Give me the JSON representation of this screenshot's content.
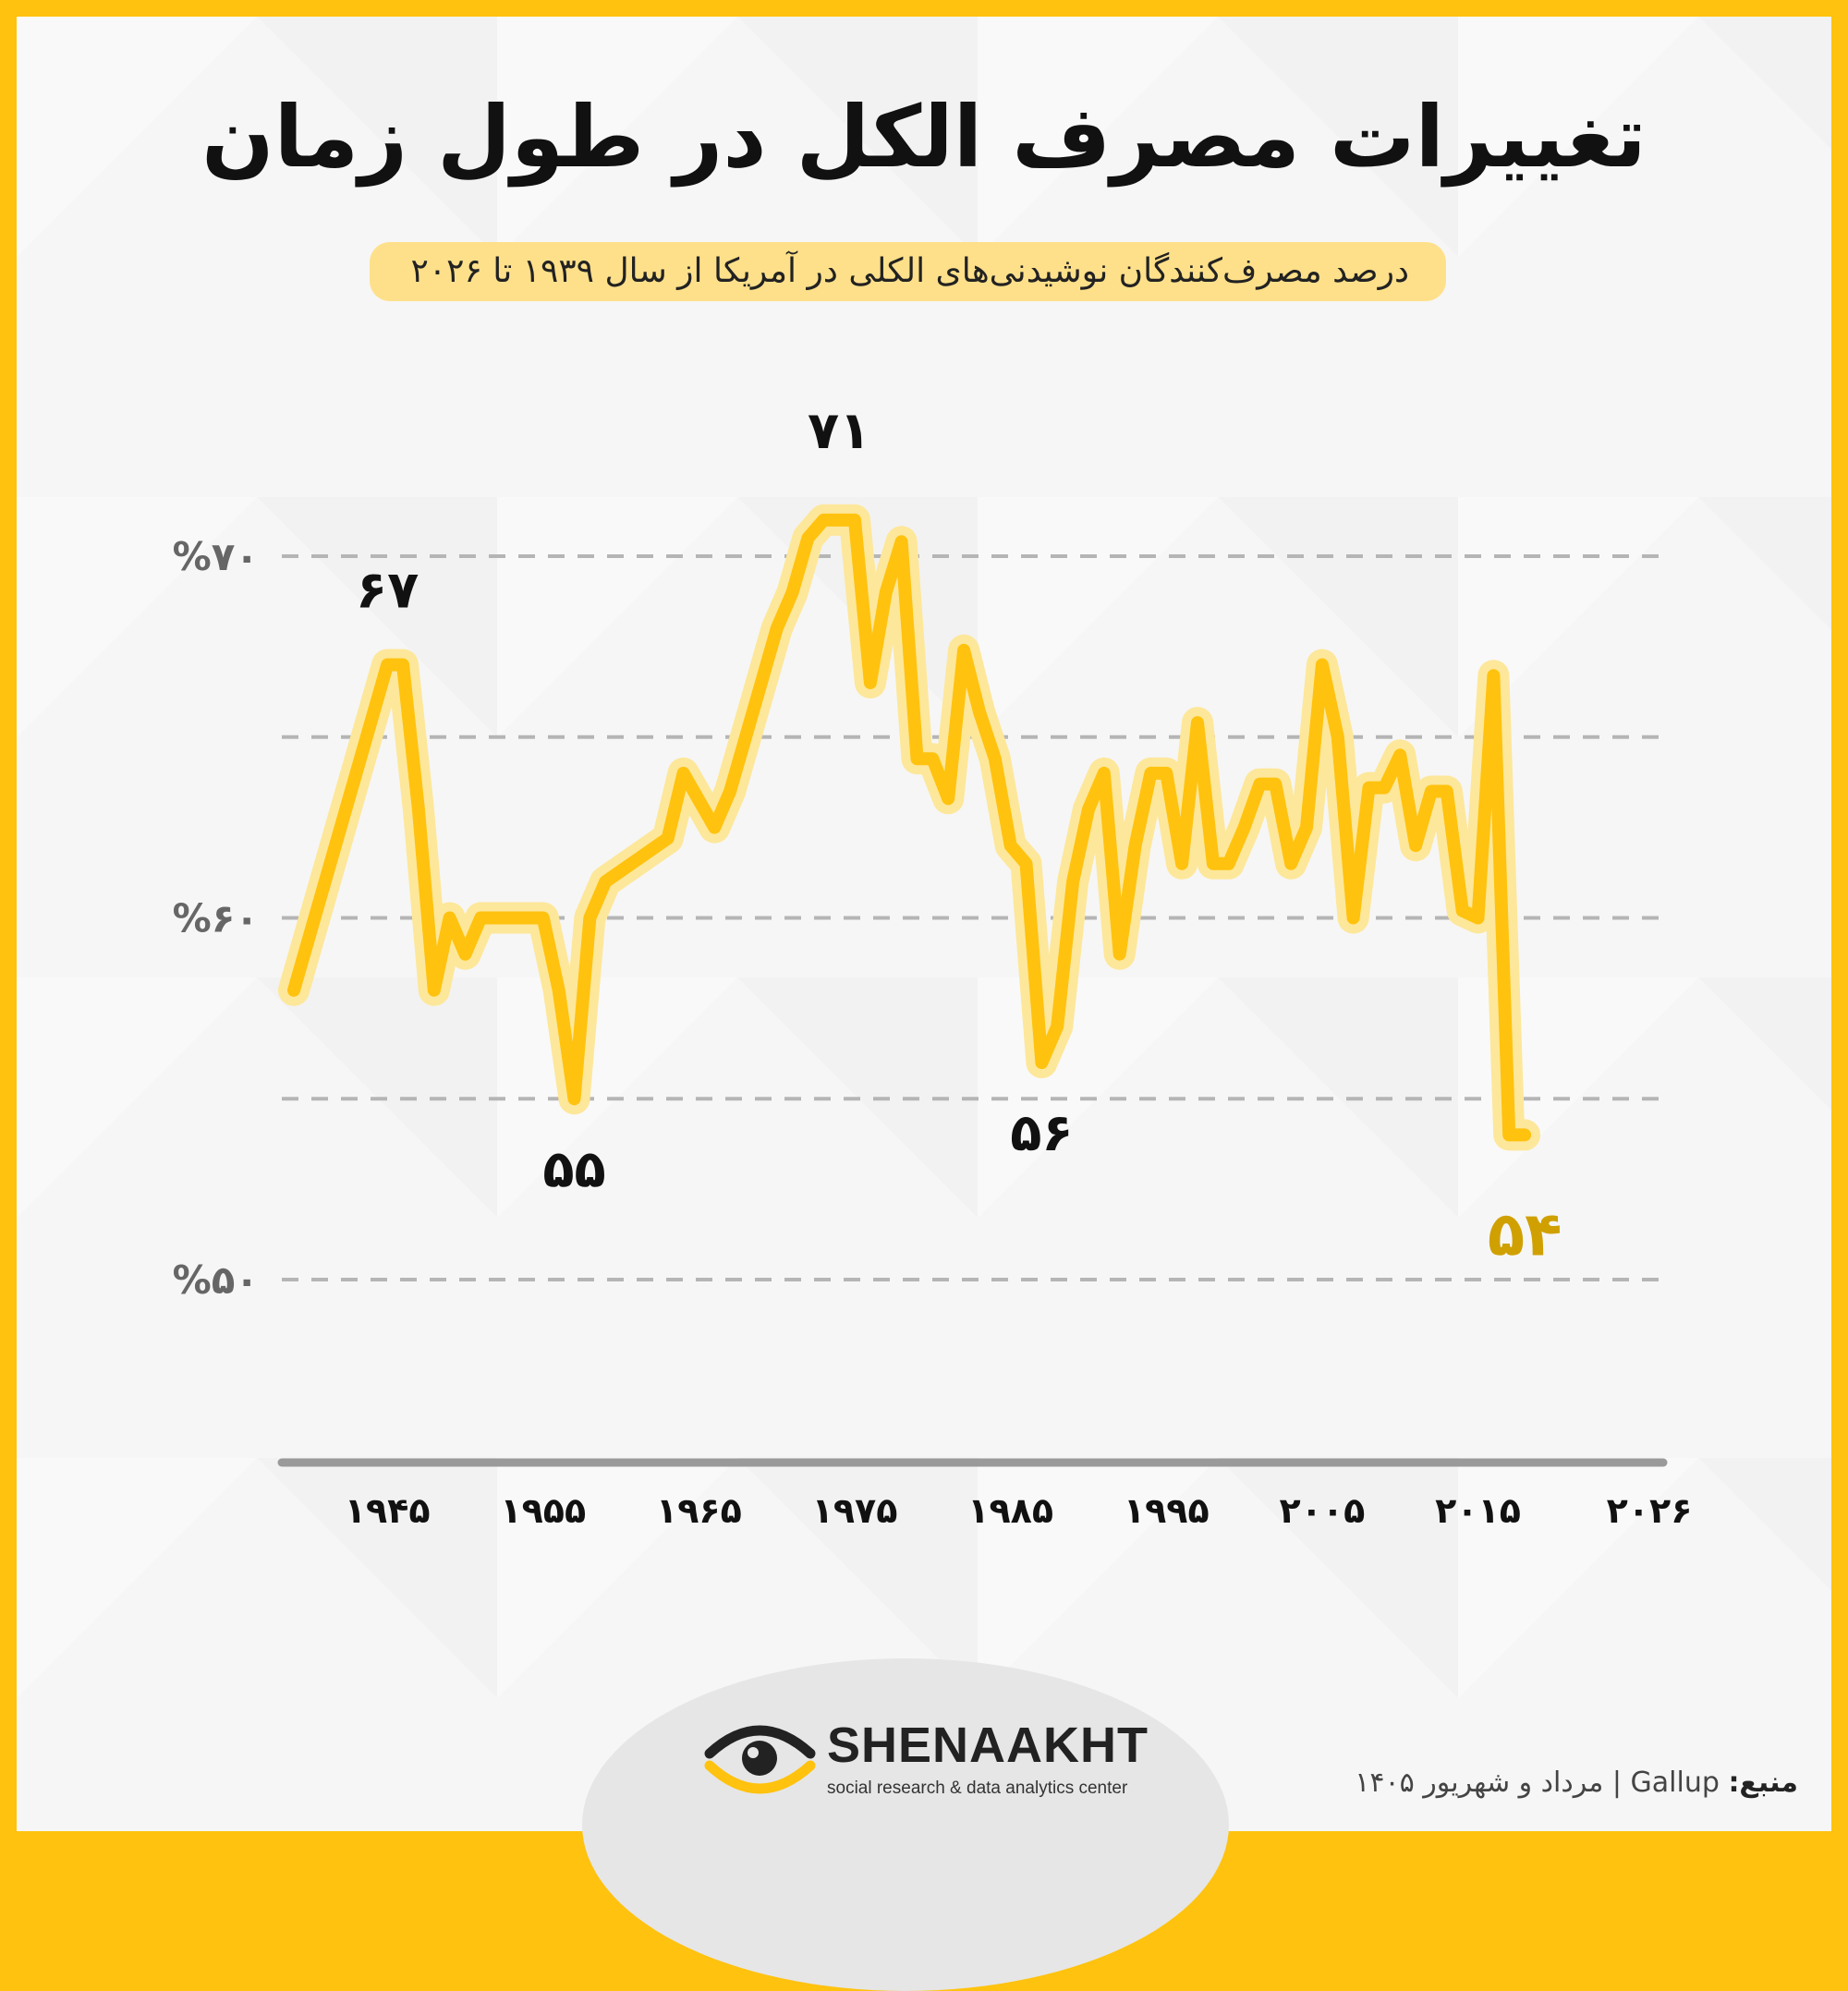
{
  "title": "تغییرات مصرف الکل در طول زمان",
  "subtitle": "درصد مصرف‌کنندگان نوشیدنی‌های الکلی در آمریکا از سال ۱۹۳۹ تا ۲۰۲۶",
  "source": {
    "label": "منبع:",
    "name": "Gallup",
    "separator": "|",
    "date": "مرداد و شهریور ۱۴۰۵"
  },
  "brand": {
    "name": "SHENAAKHT",
    "tagline": "social research & data analytics center"
  },
  "colors": {
    "frame": "#ffc20e",
    "line": "#ffc20e",
    "halo": "#fde79a",
    "final_label": "#d0a000",
    "grid": "#b5b5b5"
  },
  "chart_data": {
    "type": "line",
    "title": "تغییرات مصرف الکل در طول زمان",
    "xlabel": "",
    "ylabel": "",
    "xlim": [
      1939,
      2026
    ],
    "ylim": [
      50,
      72
    ],
    "grid": true,
    "y_ticks": [
      {
        "value": 50,
        "label": "%۵۰"
      },
      {
        "value": 60,
        "label": "%۶۰"
      },
      {
        "value": 70,
        "label": "%۷۰"
      }
    ],
    "y_grid_values": [
      55,
      60,
      65,
      70
    ],
    "x_ticks": [
      {
        "value": 1945,
        "label": "۱۹۴۵"
      },
      {
        "value": 1955,
        "label": "۱۹۵۵"
      },
      {
        "value": 1965,
        "label": "۱۹۶۵"
      },
      {
        "value": 1975,
        "label": "۱۹۷۵"
      },
      {
        "value": 1985,
        "label": "۱۹۸۵"
      },
      {
        "value": 1995,
        "label": "۱۹۹۵"
      },
      {
        "value": 2005,
        "label": "۲۰۰۵"
      },
      {
        "value": 2015,
        "label": "۲۰۱۵"
      },
      {
        "value": 2026,
        "label": "۲۰۲۶"
      }
    ],
    "series": [
      {
        "points": [
          [
            1939,
            58
          ],
          [
            1945,
            67
          ],
          [
            1946,
            67
          ],
          [
            1947,
            63
          ],
          [
            1948,
            58
          ],
          [
            1949,
            60
          ],
          [
            1950,
            59
          ],
          [
            1951,
            60
          ],
          [
            1952,
            60
          ],
          [
            1953,
            60
          ],
          [
            1954,
            60
          ],
          [
            1955,
            60
          ],
          [
            1956,
            58
          ],
          [
            1957,
            55
          ],
          [
            1958,
            60
          ],
          [
            1959,
            61
          ],
          [
            1960,
            61.3
          ],
          [
            1961,
            61.6
          ],
          [
            1962,
            61.9
          ],
          [
            1963,
            62.2
          ],
          [
            1964,
            64
          ],
          [
            1966,
            62.5
          ],
          [
            1967,
            63.5
          ],
          [
            1968,
            65
          ],
          [
            1969,
            66.5
          ],
          [
            1970,
            68
          ],
          [
            1971,
            69
          ],
          [
            1972,
            70.5
          ],
          [
            1973,
            71
          ],
          [
            1974,
            71
          ],
          [
            1975,
            71
          ],
          [
            1976,
            66.5
          ],
          [
            1977,
            69
          ],
          [
            1978,
            70.4
          ],
          [
            1979,
            64.4
          ],
          [
            1980,
            64.4
          ],
          [
            1981,
            63.3
          ],
          [
            1982,
            67.4
          ],
          [
            1983,
            65.7
          ],
          [
            1984,
            64.4
          ],
          [
            1985,
            62
          ],
          [
            1986,
            61.5
          ],
          [
            1987,
            56
          ],
          [
            1988,
            57
          ],
          [
            1989,
            61
          ],
          [
            1990,
            63
          ],
          [
            1991,
            64
          ],
          [
            1992,
            59
          ],
          [
            1993,
            62
          ],
          [
            1994,
            64
          ],
          [
            1995,
            64
          ],
          [
            1996,
            61.5
          ],
          [
            1997,
            65.4
          ],
          [
            1998,
            61.5
          ],
          [
            1999,
            61.5
          ],
          [
            2000,
            62.5
          ],
          [
            2001,
            63.7
          ],
          [
            2002,
            63.7
          ],
          [
            2003,
            61.5
          ],
          [
            2004,
            62.5
          ],
          [
            2005,
            67
          ],
          [
            2006,
            65
          ],
          [
            2007,
            60
          ],
          [
            2008,
            63.6
          ],
          [
            2009,
            63.6
          ],
          [
            2010,
            64.5
          ],
          [
            2011,
            62
          ],
          [
            2012,
            63.5
          ],
          [
            2013,
            63.5
          ],
          [
            2014,
            60.2
          ],
          [
            2015,
            60
          ],
          [
            2016,
            66.7
          ],
          [
            2017,
            54
          ],
          [
            2018,
            54
          ]
        ]
      }
    ],
    "annotations": [
      {
        "x": 1945,
        "y": 67,
        "label": "۶۷"
      },
      {
        "x": 1957,
        "y": 55,
        "label": "۵۵"
      },
      {
        "x": 1974,
        "y": 71,
        "label": "۷۱"
      },
      {
        "x": 1987,
        "y": 56,
        "label": "۵۶"
      },
      {
        "x": 2018,
        "y": 54,
        "label": "۵۴"
      }
    ]
  }
}
